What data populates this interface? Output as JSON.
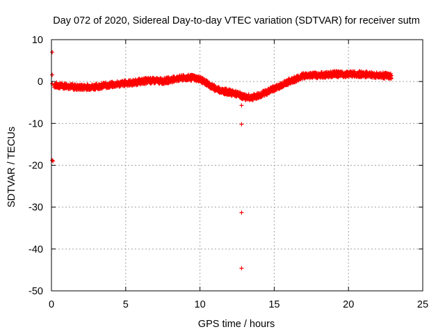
{
  "chart_data": {
    "type": "scatter",
    "title": "Day 072 of 2020, Sidereal Day-to-day VTEC variation (SDTVAR) for receiver sutm",
    "xlabel": "GPS time / hours",
    "ylabel": "SDTVAR / TECUs",
    "xlim": [
      0,
      25
    ],
    "ylim": [
      -50,
      10
    ],
    "xticks": [
      0,
      5,
      10,
      15,
      20,
      25
    ],
    "yticks": [
      10,
      0,
      -10,
      -20,
      -30,
      -40,
      -50
    ],
    "xtick_labels": [
      "0",
      "5",
      "10",
      "15",
      "20",
      "25"
    ],
    "ytick_labels": [
      "10",
      "0",
      "-10",
      "-20",
      "-30",
      "-40",
      "-50"
    ],
    "grid": true,
    "marker": "+",
    "marker_color": "#ff0000",
    "series": [
      {
        "name": "SDTVAR",
        "band_x": [
          0.2,
          0.5,
          1,
          1.5,
          2,
          2.5,
          3,
          3.5,
          4,
          4.5,
          5,
          5.5,
          6,
          6.5,
          7,
          7.5,
          8,
          8.5,
          9,
          9.5,
          10,
          10.5,
          11,
          11.5,
          12,
          12.5,
          13,
          13.5,
          14,
          14.5,
          15,
          15.5,
          16,
          16.5,
          17,
          17.5,
          18,
          18.5,
          19,
          19.5,
          20,
          20.5,
          21,
          21.5,
          22,
          22.5,
          22.9
        ],
        "band_y": [
          -0.8,
          -1.0,
          -1.0,
          -1.3,
          -1.4,
          -1.3,
          -1.2,
          -1.0,
          -0.8,
          -0.6,
          -0.4,
          -0.3,
          0.0,
          0.2,
          0.2,
          0.1,
          0.4,
          0.7,
          0.9,
          0.9,
          0.6,
          -0.5,
          -1.6,
          -2.2,
          -2.6,
          -3.0,
          -3.7,
          -3.8,
          -3.3,
          -2.5,
          -1.7,
          -0.8,
          0.0,
          0.7,
          1.4,
          1.5,
          1.5,
          1.6,
          1.8,
          1.7,
          1.8,
          1.8,
          1.7,
          1.6,
          1.5,
          1.4,
          1.2
        ],
        "outliers": [
          [
            0.05,
            7.0
          ],
          [
            0.05,
            1.6
          ],
          [
            0.05,
            -0.5
          ],
          [
            0.05,
            -18.8
          ],
          [
            0.1,
            -19.0
          ],
          [
            12.8,
            -5.7
          ],
          [
            12.8,
            -10.2
          ],
          [
            12.8,
            -31.3
          ],
          [
            12.8,
            -44.6
          ]
        ]
      }
    ]
  }
}
